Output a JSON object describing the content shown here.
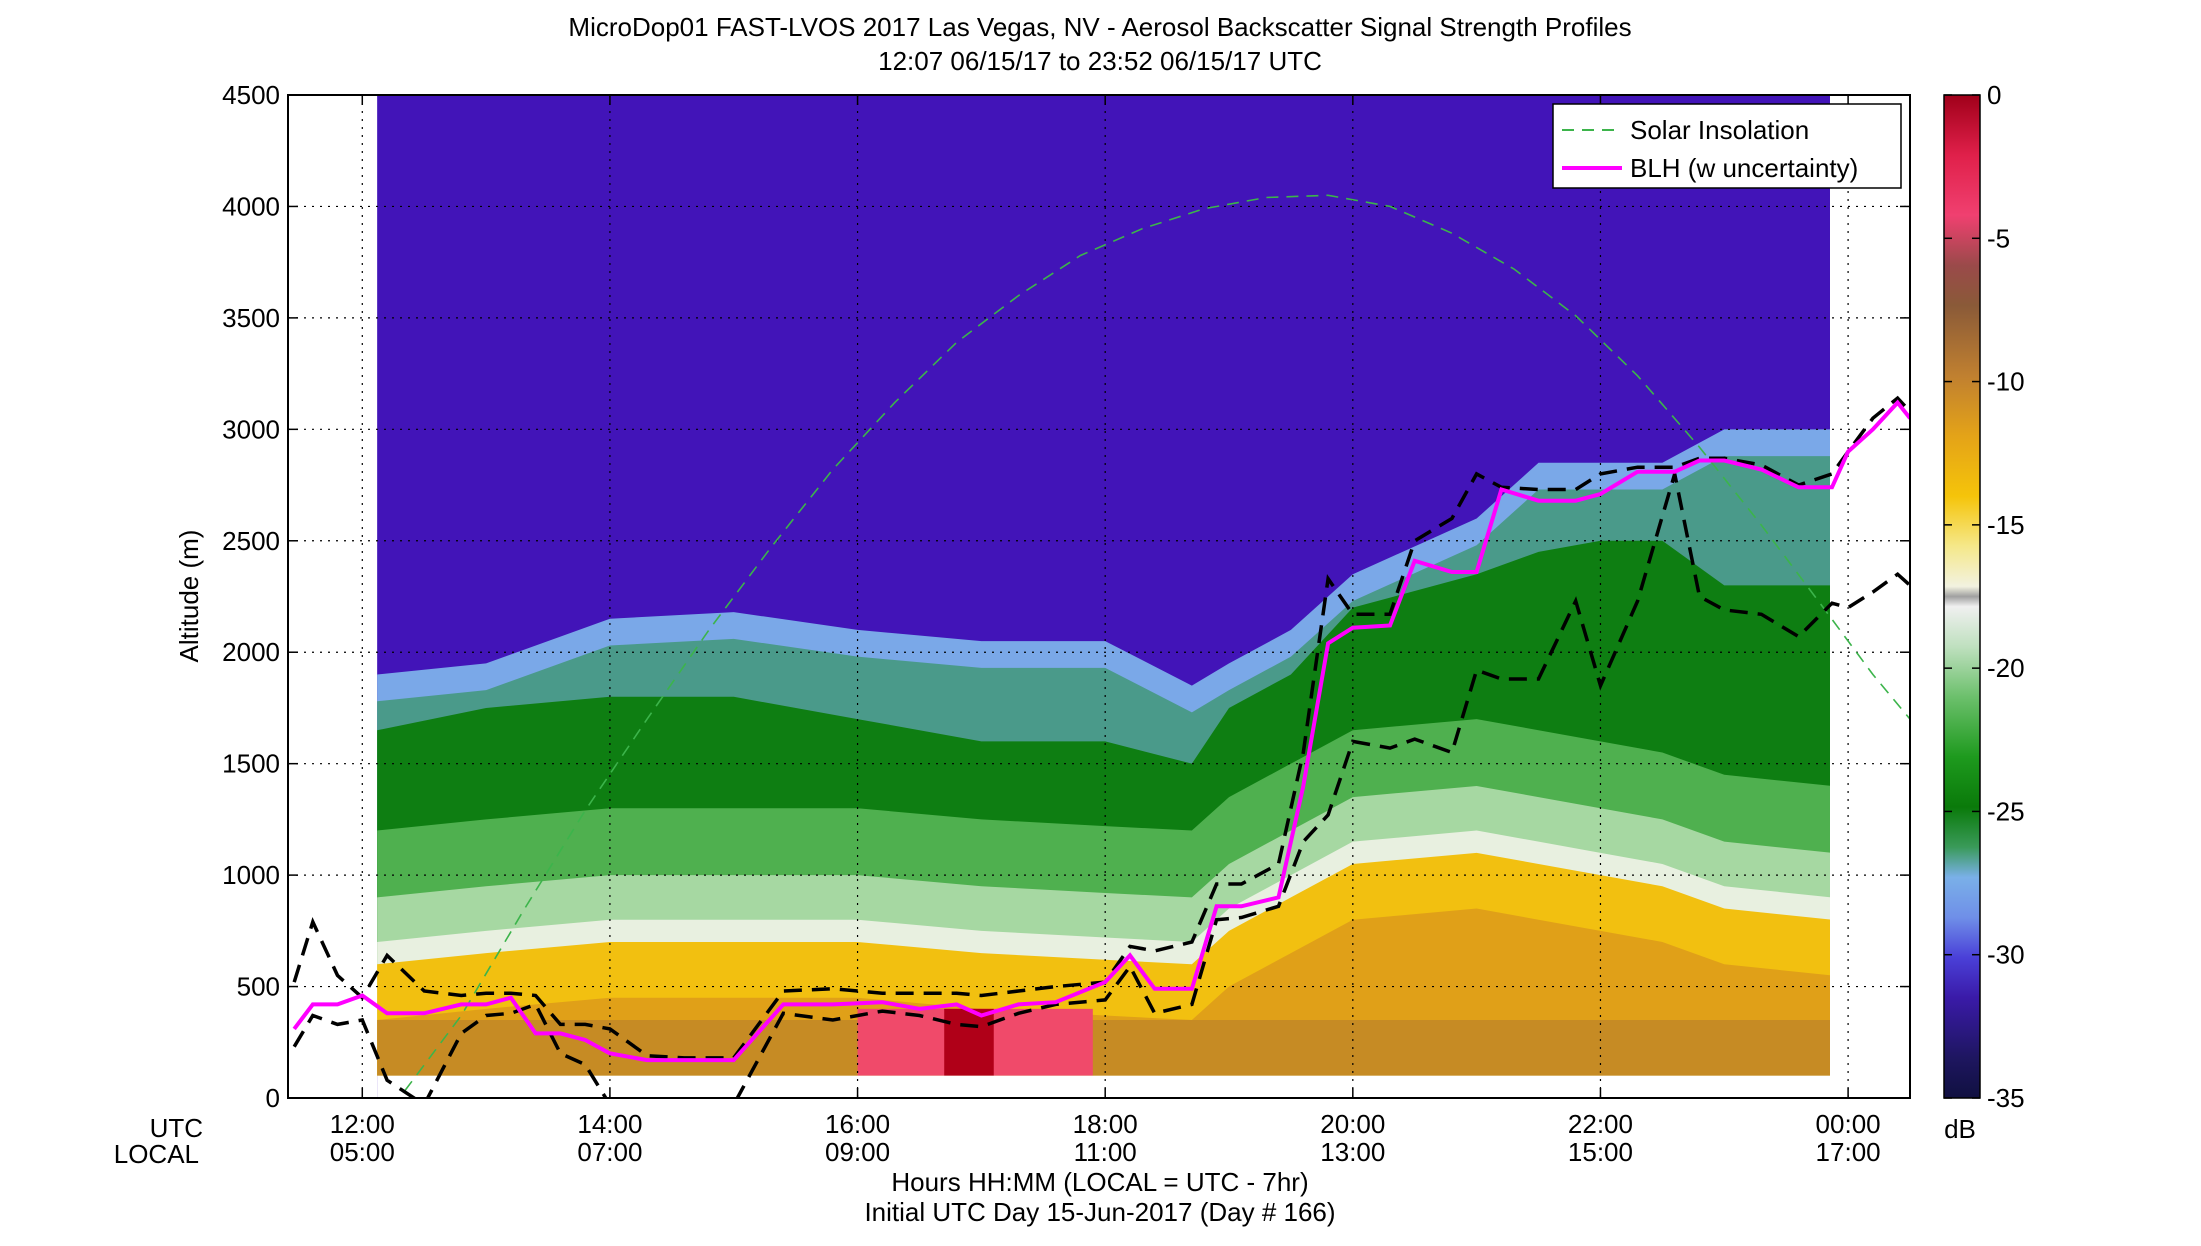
{
  "chart_data": {
    "type": "heatmap",
    "title": "MicroDop01 FAST-LVOS 2017 Las Vegas, NV - Aerosol Backscatter Signal Strength Profiles",
    "subtitle": "12:07 06/15/17 to 23:52 06/15/17  UTC",
    "ylabel": "Altitude (m)",
    "xlabel": "Hours HH:MM  (LOCAL = UTC - 7hr)",
    "footer": "Initial UTC Day 15-Jun-2017 (Day # 166)",
    "x_row_labels": [
      "UTC",
      "LOCAL"
    ],
    "xlim": [
      11.4,
      24.5
    ],
    "ylim": [
      0,
      4500
    ],
    "data_xlim": [
      12.12,
      23.87
    ],
    "grid": true,
    "x_ticks": [
      {
        "utc": 12,
        "utc_label": "12:00",
        "local_label": "05:00"
      },
      {
        "utc": 14,
        "utc_label": "14:00",
        "local_label": "07:00"
      },
      {
        "utc": 16,
        "utc_label": "16:00",
        "local_label": "09:00"
      },
      {
        "utc": 18,
        "utc_label": "18:00",
        "local_label": "11:00"
      },
      {
        "utc": 20,
        "utc_label": "20:00",
        "local_label": "13:00"
      },
      {
        "utc": 22,
        "utc_label": "22:00",
        "local_label": "15:00"
      },
      {
        "utc": 24,
        "utc_label": "00:00",
        "local_label": "17:00"
      }
    ],
    "y_ticks": [
      {
        "v": 0,
        "label": "0"
      },
      {
        "v": 500,
        "label": "500"
      },
      {
        "v": 1000,
        "label": "1000"
      },
      {
        "v": 1500,
        "label": "1500"
      },
      {
        "v": 2000,
        "label": "2000"
      },
      {
        "v": 2500,
        "label": "2500"
      },
      {
        "v": 3000,
        "label": "3000"
      },
      {
        "v": 3500,
        "label": "3500"
      },
      {
        "v": 4000,
        "label": "4000"
      },
      {
        "v": 4500,
        "label": "4500"
      }
    ],
    "colorbar": {
      "unit": "dB",
      "range": [
        -35,
        0
      ],
      "ticks": [
        {
          "v": 0,
          "label": "0"
        },
        {
          "v": -5,
          "label": "-5"
        },
        {
          "v": -10,
          "label": "-10"
        },
        {
          "v": -15,
          "label": "-15"
        },
        {
          "v": -20,
          "label": "-20"
        },
        {
          "v": -25,
          "label": "-25"
        },
        {
          "v": -30,
          "label": "-30"
        },
        {
          "v": -35,
          "label": "-35"
        }
      ]
    },
    "legend_position": "top-right",
    "legend": [
      {
        "name": "Solar Insolation",
        "style": "dashed",
        "color": "#3cb44b"
      },
      {
        "name": "BLH (w uncertainty)",
        "style": "solid",
        "color": "#ff00ff"
      }
    ],
    "heatmap_layers": {
      "note_units": "altitude in m, signal in dB",
      "x": [
        12.12,
        13.0,
        14.0,
        15.0,
        16.0,
        17.0,
        18.0,
        18.7,
        19.0,
        19.5,
        20.0,
        21.0,
        21.5,
        22.0,
        22.5,
        23.0,
        23.87
      ],
      "aerosol_top_m": [
        1900,
        1950,
        2150,
        2180,
        2100,
        2050,
        2050,
        1850,
        1950,
        2100,
        2350,
        2600,
        2850,
        2850,
        2850,
        3000,
        3000
      ],
      "green_core_top_m": [
        1650,
        1750,
        1800,
        1800,
        1700,
        1600,
        1600,
        1500,
        1750,
        1900,
        2200,
        2350,
        2450,
        2500,
        2500,
        2300,
        2300
      ],
      "yellow_top_m": [
        600,
        650,
        700,
        700,
        700,
        650,
        620,
        600,
        750,
        900,
        1050,
        1100,
        1050,
        1000,
        950,
        850,
        800
      ]
    },
    "series": [
      {
        "name": "BLH (w uncertainty)",
        "x": [
          11.45,
          11.6,
          11.8,
          12.0,
          12.2,
          12.5,
          12.8,
          13.0,
          13.2,
          13.4,
          13.6,
          13.8,
          14.0,
          14.3,
          14.6,
          15.0,
          15.4,
          15.8,
          16.2,
          16.5,
          16.8,
          17.0,
          17.3,
          17.6,
          18.0,
          18.2,
          18.4,
          18.7,
          18.9,
          19.1,
          19.4,
          19.6,
          19.8,
          20.0,
          20.3,
          20.5,
          20.8,
          21.0,
          21.2,
          21.5,
          21.8,
          22.0,
          22.3,
          22.6,
          22.8,
          23.0,
          23.3,
          23.6,
          23.87,
          24.0,
          24.2,
          24.4,
          24.5
        ],
        "y": [
          310,
          420,
          420,
          460,
          380,
          380,
          420,
          420,
          450,
          290,
          290,
          260,
          200,
          170,
          170,
          170,
          420,
          420,
          430,
          400,
          420,
          370,
          420,
          430,
          520,
          640,
          490,
          490,
          860,
          860,
          900,
          1400,
          2040,
          2110,
          2120,
          2410,
          2360,
          2360,
          2730,
          2680,
          2680,
          2710,
          2810,
          2810,
          2860,
          2860,
          2820,
          2740,
          2740,
          2900,
          3000,
          3120,
          3050
        ]
      },
      {
        "name": "BLH upper uncertainty",
        "x": [
          11.45,
          11.6,
          11.8,
          12.0,
          12.2,
          12.5,
          12.8,
          13.0,
          13.2,
          13.4,
          13.6,
          13.8,
          14.0,
          14.3,
          14.6,
          15.0,
          15.4,
          15.8,
          16.2,
          16.5,
          16.8,
          17.0,
          17.3,
          17.6,
          18.0,
          18.2,
          18.4,
          18.7,
          18.9,
          19.1,
          19.4,
          19.6,
          19.8,
          20.0,
          20.3,
          20.5,
          20.8,
          21.0,
          21.2,
          21.5,
          21.8,
          22.0,
          22.3,
          22.6,
          22.8,
          23.0,
          23.3,
          23.6,
          23.87,
          24.0,
          24.2,
          24.4,
          24.5
        ],
        "y": [
          520,
          790,
          550,
          450,
          640,
          480,
          460,
          470,
          470,
          460,
          330,
          330,
          310,
          190,
          180,
          180,
          480,
          490,
          470,
          470,
          470,
          460,
          480,
          500,
          520,
          680,
          660,
          700,
          960,
          960,
          1050,
          1550,
          2330,
          2170,
          2170,
          2500,
          2600,
          2800,
          2740,
          2730,
          2730,
          2800,
          2830,
          2830,
          2870,
          2870,
          2840,
          2750,
          2800,
          2900,
          3050,
          3140,
          3080
        ]
      },
      {
        "name": "BLH lower uncertainty",
        "x": [
          11.45,
          11.6,
          11.8,
          12.0,
          12.2,
          12.5,
          12.8,
          13.0,
          13.2,
          13.4,
          13.6,
          13.8,
          14.0,
          14.3,
          14.6,
          15.0,
          15.4,
          15.8,
          16.2,
          16.5,
          16.8,
          17.0,
          17.3,
          17.6,
          18.0,
          18.2,
          18.4,
          18.7,
          18.9,
          19.1,
          19.4,
          19.6,
          19.8,
          20.0,
          20.3,
          20.5,
          20.8,
          21.0,
          21.2,
          21.5,
          21.8,
          22.0,
          22.3,
          22.6,
          22.8,
          23.0,
          23.3,
          23.6,
          23.87,
          24.0,
          24.2,
          24.4,
          24.5
        ],
        "y": [
          230,
          370,
          330,
          350,
          80,
          -30,
          290,
          370,
          380,
          420,
          200,
          150,
          -30,
          -30,
          -30,
          -30,
          380,
          350,
          390,
          370,
          330,
          320,
          380,
          420,
          440,
          590,
          380,
          420,
          800,
          810,
          860,
          1150,
          1270,
          1600,
          1570,
          1610,
          1550,
          1920,
          1880,
          1880,
          2230,
          1850,
          2230,
          2800,
          2250,
          2190,
          2170,
          2070,
          2220,
          2200,
          2270,
          2350,
          2300
        ]
      },
      {
        "name": "Solar Insolation",
        "x": [
          11.8,
          12.3,
          12.8,
          13.3,
          13.8,
          14.3,
          14.8,
          15.3,
          15.8,
          16.3,
          16.8,
          17.3,
          17.8,
          18.3,
          18.8,
          19.3,
          19.8,
          20.3,
          20.8,
          21.3,
          21.8,
          22.3,
          22.8,
          23.3,
          23.8,
          24.2,
          24.5
        ],
        "y": [
          -300,
          0,
          370,
          840,
          1290,
          1700,
          2100,
          2470,
          2820,
          3120,
          3390,
          3600,
          3780,
          3900,
          3990,
          4040,
          4050,
          4000,
          3880,
          3720,
          3510,
          3240,
          2920,
          2570,
          2200,
          1900,
          1700
        ]
      }
    ]
  }
}
